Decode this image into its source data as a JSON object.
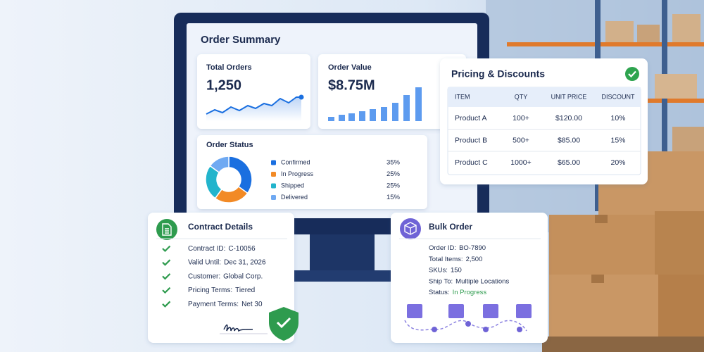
{
  "order_summary": {
    "title": "Order Summary",
    "total_orders": {
      "label": "Total Orders",
      "value": "1,250"
    },
    "order_value": {
      "label": "Order Value",
      "value": "$8.75M"
    },
    "order_status": {
      "title": "Order Status",
      "categories": [
        "Confirmed",
        "In Progress",
        "Shipped",
        "Delivered"
      ],
      "values": [
        35,
        25,
        25,
        15
      ],
      "value_labels": [
        "35%",
        "25%",
        "25%",
        "15%"
      ],
      "colors": [
        "#1a6fe0",
        "#f28a26",
        "#22b4cc",
        "#6fa9f2"
      ]
    }
  },
  "pricing": {
    "title": "Pricing & Discounts",
    "columns": [
      "ITEM",
      "QTY",
      "UNIT PRICE",
      "DISCOUNT"
    ],
    "rows": [
      [
        "Product A",
        "100+",
        "$120.00",
        "10%"
      ],
      [
        "Product B",
        "500+",
        "$85.00",
        "15%"
      ],
      [
        "Product C",
        "1000+",
        "$65.00",
        "20%"
      ]
    ]
  },
  "contract": {
    "title": "Contract Details",
    "fields": [
      {
        "label": "Contract ID:",
        "value": "C-10056"
      },
      {
        "label": "Valid Until:",
        "value": "Dec 31, 2026"
      },
      {
        "label": "Customer:",
        "value": "Global Corp."
      },
      {
        "label": "Pricing Terms:",
        "value": "Tiered"
      },
      {
        "label": "Payment Terms:",
        "value": "Net 30"
      }
    ]
  },
  "bulk_order": {
    "title": "Bulk Order",
    "fields": [
      {
        "label": "Order ID:",
        "value": "BO-7890"
      },
      {
        "label": "Total Items:",
        "value": "2,500"
      },
      {
        "label": "SKUs:",
        "value": "150"
      },
      {
        "label": "Ship To:",
        "value": "Multiple Locations"
      },
      {
        "label": "Status:",
        "value": "In Progress"
      }
    ]
  }
}
